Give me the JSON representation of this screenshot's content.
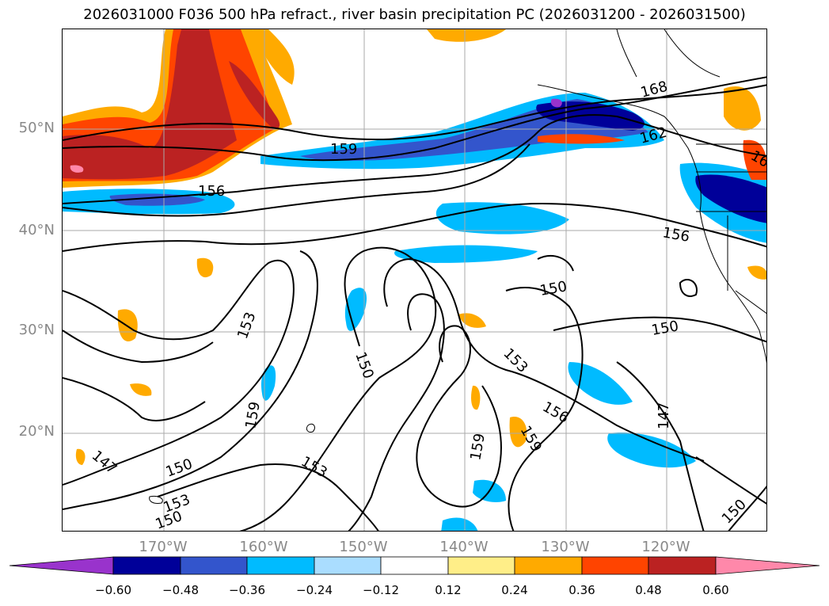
{
  "title": "2026031000 F036 500 hPa refract., river basin precipitation PC (2026031200 - 2026031500)",
  "map": {
    "lat_labels": [
      "50°N",
      "40°N",
      "30°N",
      "20°N"
    ],
    "lon_labels": [
      "170°W",
      "160°W",
      "150°W",
      "140°W",
      "130°W",
      "120°W"
    ],
    "contour_labels": [
      "168",
      "162",
      "16",
      "159",
      "156",
      "156",
      "150",
      "150",
      "153",
      "150",
      "153",
      "156",
      "159",
      "159",
      "159",
      "147",
      "150",
      "147",
      "153",
      "153",
      "150",
      "150"
    ]
  },
  "colorbar": {
    "ticks": [
      "−0.60",
      "−0.48",
      "−0.36",
      "−0.24",
      "−0.12",
      "0.12",
      "0.24",
      "0.36",
      "0.48",
      "0.60"
    ],
    "colors": [
      "#9933cc",
      "#000099",
      "#3355cc",
      "#00bbff",
      "#aaddff",
      "#ffffff",
      "#ffee88",
      "#ffaa00",
      "#ff4400",
      "#bb2222",
      "#ff88aa"
    ]
  }
}
